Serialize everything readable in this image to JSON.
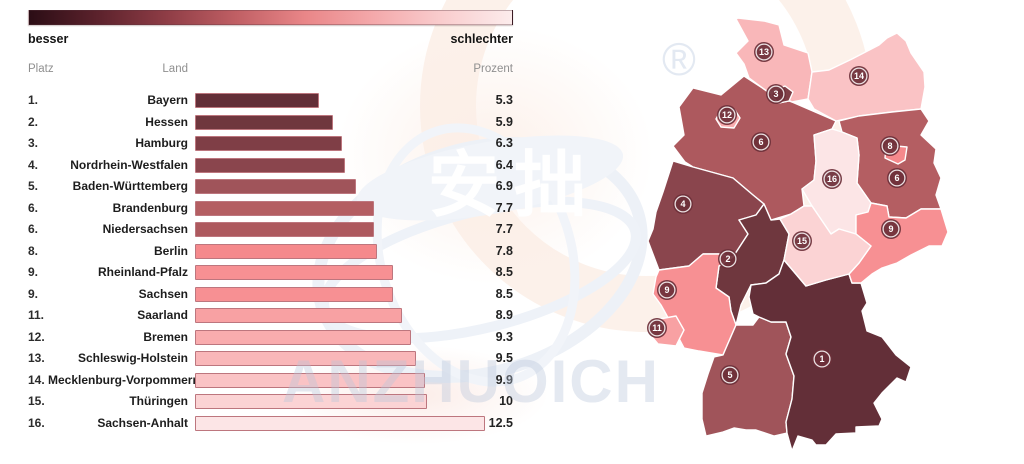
{
  "legend": {
    "better_label": "besser",
    "worse_label": "schlechter",
    "gradient_colors": [
      "#2b0d15",
      "#5c222c",
      "#8f3d46",
      "#c05f64",
      "#e98688",
      "#f4a9ab",
      "#f9cdce",
      "#fcecec"
    ]
  },
  "table": {
    "headers": {
      "rank": "Platz",
      "state": "Land",
      "value": "Prozent"
    },
    "max_value": 12.5,
    "bar_border_color": "#bd767e",
    "rows": [
      {
        "rank": "1.",
        "state": "Bayern",
        "value": "5.3",
        "num": 5.3,
        "color": "#632f38"
      },
      {
        "rank": "2.",
        "state": "Hessen",
        "value": "5.9",
        "num": 5.9,
        "color": "#6f373e"
      },
      {
        "rank": "3.",
        "state": "Hamburg",
        "value": "6.3",
        "num": 6.3,
        "color": "#7f3e46"
      },
      {
        "rank": "4.",
        "state": "Nordrhein-Westfalen",
        "value": "6.4",
        "num": 6.4,
        "color": "#8a454d"
      },
      {
        "rank": "5.",
        "state": "Baden-Württemberg",
        "value": "6.9",
        "num": 6.9,
        "color": "#a0545a"
      },
      {
        "rank": "6.",
        "state": "Brandenburg",
        "value": "7.7",
        "num": 7.7,
        "color": "#b45e62"
      },
      {
        "rank": "6.",
        "state": "Niedersachsen",
        "value": "7.7",
        "num": 7.7,
        "color": "#ad595e"
      },
      {
        "rank": "8.",
        "state": "Berlin",
        "value": "7.8",
        "num": 7.8,
        "color": "#f5898c"
      },
      {
        "rank": "9.",
        "state": "Rheinland-Pfalz",
        "value": "8.5",
        "num": 8.5,
        "color": "#f79093"
      },
      {
        "rank": "9.",
        "state": "Sachsen",
        "value": "8.5",
        "num": 8.5,
        "color": "#f79093"
      },
      {
        "rank": "11.",
        "state": "Saarland",
        "value": "8.9",
        "num": 8.9,
        "color": "#f8a1a3"
      },
      {
        "rank": "12.",
        "state": "Bremen",
        "value": "9.3",
        "num": 9.3,
        "color": "#f9acae"
      },
      {
        "rank": "13.",
        "state": "Schleswig-Holstein",
        "value": "9.5",
        "num": 9.5,
        "color": "#f9b7b9"
      },
      {
        "rank": "14.",
        "state": "Mecklenburg-Vorpommern",
        "value": "9.9",
        "num": 9.9,
        "color": "#fac3c5"
      },
      {
        "rank": "15.",
        "state": "Thüringen",
        "value": "10",
        "num": 10,
        "color": "#fbd3d4"
      },
      {
        "rank": "16.",
        "state": "Sachsen-Anhalt",
        "value": "12.5",
        "num": 12.5,
        "color": "#fce5e6"
      }
    ]
  },
  "map": {
    "badge_fill": "#6d2f39",
    "states": [
      {
        "id": "NI",
        "name": "Niedersachsen",
        "badge": "6",
        "color": "#ad595e"
      },
      {
        "id": "NW",
        "name": "Nordrhein-Westfalen",
        "badge": "4",
        "color": "#8a454d"
      },
      {
        "id": "HE",
        "name": "Hessen",
        "badge": "2",
        "color": "#6f373e"
      },
      {
        "id": "RP",
        "name": "Rheinland-Pfalz",
        "badge": "9",
        "color": "#f79093"
      },
      {
        "id": "BW",
        "name": "Baden-Württemberg",
        "badge": "5",
        "color": "#a0545a"
      },
      {
        "id": "BY",
        "name": "Bayern",
        "badge": "1",
        "color": "#632f38"
      },
      {
        "id": "SH",
        "name": "Schleswig-Holstein",
        "badge": "13",
        "color": "#f9b7b9"
      },
      {
        "id": "MV",
        "name": "Mecklenburg-Vorpommern",
        "badge": "14",
        "color": "#fac3c5"
      },
      {
        "id": "BB",
        "name": "Brandenburg",
        "badge": "6",
        "color": "#b45e62"
      },
      {
        "id": "ST",
        "name": "Sachsen-Anhalt",
        "badge": "16",
        "color": "#fce5e6"
      },
      {
        "id": "SN",
        "name": "Sachsen",
        "badge": "9",
        "color": "#f79093"
      },
      {
        "id": "TH",
        "name": "Thüringen",
        "badge": "15",
        "color": "#fbd3d4"
      },
      {
        "id": "SL",
        "name": "Saarland",
        "badge": "11",
        "color": "#f8a1a3"
      },
      {
        "id": "HH",
        "name": "Hamburg",
        "badge": "3",
        "color": "#7f3e46"
      },
      {
        "id": "HB",
        "name": "Bremen",
        "badge": "12",
        "color": "#f9acae"
      },
      {
        "id": "BE",
        "name": "Berlin",
        "badge": "8",
        "color": "#f5898c"
      }
    ]
  },
  "watermark": {
    "cjk": "安拙",
    "latin": "ANZHUOICH",
    "registered": "®"
  },
  "chart_data": [
    {
      "type": "bar",
      "orientation": "horizontal",
      "title": "",
      "categories": [
        "Bayern",
        "Hessen",
        "Hamburg",
        "Nordrhein-Westfalen",
        "Baden-Württemberg",
        "Brandenburg",
        "Niedersachsen",
        "Berlin",
        "Rheinland-Pfalz",
        "Sachsen",
        "Saarland",
        "Bremen",
        "Schleswig-Holstein",
        "Mecklenburg-Vorpommern",
        "Thüringen",
        "Sachsen-Anhalt"
      ],
      "values": [
        5.3,
        5.9,
        6.3,
        6.4,
        6.9,
        7.7,
        7.7,
        7.8,
        8.5,
        8.5,
        8.9,
        9.3,
        9.5,
        9.9,
        10,
        12.5
      ],
      "ranks": [
        1,
        2,
        3,
        4,
        5,
        6,
        6,
        8,
        9,
        9,
        11,
        12,
        13,
        14,
        15,
        16
      ],
      "xlabel": "Prozent",
      "ylabel": "Land",
      "xlim": [
        0,
        12.5
      ],
      "grid": false,
      "legend_position": "top",
      "color_scale": {
        "from_label": "besser",
        "to_label": "schlechter",
        "from_color": "#2b0d15",
        "to_color": "#fcecec"
      }
    },
    {
      "type": "heatmap",
      "subtype": "choropleth-map-germany",
      "regions": [
        "Schleswig-Holstein",
        "Mecklenburg-Vorpommern",
        "Hamburg",
        "Bremen",
        "Niedersachsen",
        "Berlin",
        "Brandenburg",
        "Sachsen-Anhalt",
        "Nordrhein-Westfalen",
        "Sachsen",
        "Thüringen",
        "Hessen",
        "Rheinland-Pfalz",
        "Saarland",
        "Bayern",
        "Baden-Württemberg"
      ],
      "badge_labels": [
        13,
        14,
        3,
        12,
        6,
        8,
        6,
        16,
        4,
        9,
        15,
        2,
        9,
        11,
        1,
        5
      ],
      "values": [
        9.5,
        9.9,
        6.3,
        9.3,
        7.7,
        7.8,
        7.7,
        12.5,
        6.4,
        8.5,
        10,
        5.9,
        8.5,
        8.9,
        5.3,
        6.9
      ]
    }
  ]
}
